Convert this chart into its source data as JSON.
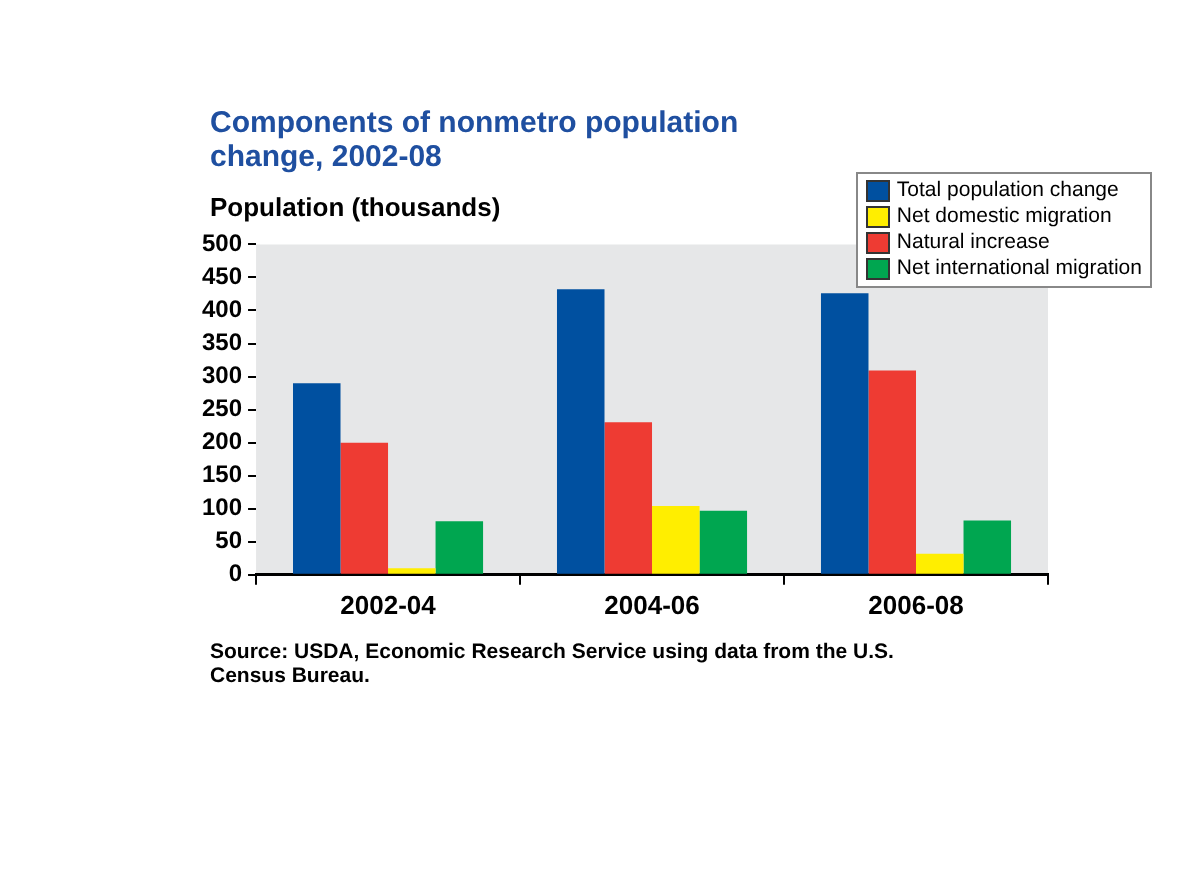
{
  "chart_data": {
    "type": "bar",
    "title": "Components of nonmetro population change, 2002-08",
    "ylabel": "Population (thousands)",
    "categories": [
      "2002-04",
      "2004-06",
      "2006-08"
    ],
    "series": [
      {
        "name": "Total population change",
        "color": "#0050a0",
        "values": [
          290,
          432,
          426
        ]
      },
      {
        "name": "Natural increase",
        "color": "#ee3b33",
        "values": [
          200,
          231,
          309
        ]
      },
      {
        "name": "Net domestic migration",
        "color": "#ffee00",
        "values": [
          10,
          104,
          32
        ]
      },
      {
        "name": "Net international migration",
        "color": "#00a650",
        "values": [
          81,
          97,
          82
        ]
      }
    ],
    "ylim": [
      0,
      500
    ],
    "yticks": [
      0,
      50,
      100,
      150,
      200,
      250,
      300,
      350,
      400,
      450,
      500
    ],
    "grid": false,
    "legend": "top right",
    "annotations": [
      "Source: USDA, Economic Research Service using data from the U.S. Census Bureau."
    ]
  }
}
